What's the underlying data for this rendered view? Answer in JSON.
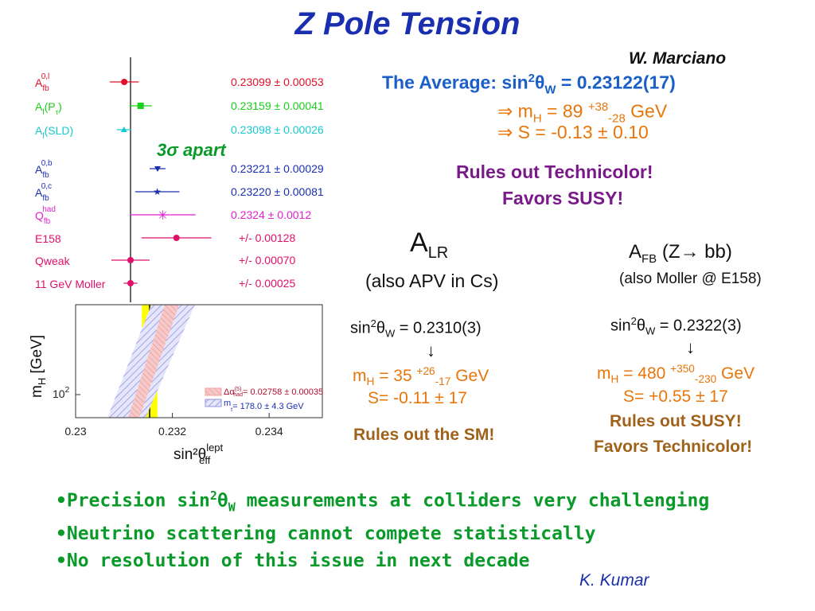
{
  "title": "Z Pole Tension",
  "author_top": "W. Marciano",
  "average": {
    "prefix": "The Average:  sin",
    "sup": "2",
    "theta": "θ",
    "sub": "W",
    "value": " = 0.23122(17)"
  },
  "implications": {
    "mh_arrow": "⇒ m",
    "mh_sub": "H",
    "mh_eq": " = 89 ",
    "mh_sup": "+38",
    "mh_sub2": "-28",
    "mh_unit": " GeV",
    "s_line": "⇒ S = -0.13 ± 0.10"
  },
  "rules_left": [
    "Rules out Technicolor!",
    "Favors SUSY!"
  ],
  "sigma_apart": "3σ apart",
  "alr": {
    "title_A": "A",
    "title_sub": "LR",
    "subtitle": "(also APV in Cs)",
    "sin_pre": "sin",
    "sin_sup": "2",
    "sin_theta": "θ",
    "sin_sub": "W",
    "sin_val": " = 0.2310(3)",
    "arrow": "↓",
    "mh_pre": "m",
    "mh_sub": "H",
    "mh_eq": " = 35 ",
    "mh_sup": "+26",
    "mh_sub2": "-17",
    "mh_unit": " GeV",
    "s_line": "S= -0.11 ± 17",
    "rules": "Rules out the SM!"
  },
  "afb": {
    "title_A": "A",
    "title_sub": "FB",
    "title_rest": " (Z→ bb)",
    "subtitle": "(also Moller @ E158)",
    "sin_pre": "sin",
    "sin_sup": "2",
    "sin_theta": "θ",
    "sin_sub": "W",
    "sin_val": " = 0.2322(3)",
    "arrow": "↓",
    "mh_pre": "m",
    "mh_sub": "H",
    "mh_eq": " = 480 ",
    "mh_sup": "+350",
    "mh_sub2": "-230",
    "mh_unit": " GeV",
    "s_line": "S= +0.55 ± 17",
    "rules": [
      "Rules out SUSY!",
      "Favors Technicolor!"
    ]
  },
  "bullets": [
    {
      "pre": "•Precision sin",
      "sup": "2",
      "theta": "θ",
      "sub": "W",
      "post": " measurements at colliders very challenging"
    },
    {
      "pre": "•Neutrino scattering cannot compete statistically"
    },
    {
      "pre": "•No resolution of this issue in next decade"
    }
  ],
  "author_bottom": "K. Kumar",
  "chart_data": [
    {
      "type": "scatter",
      "rows": [
        {
          "label": "A",
          "label_sup": "0,l",
          "label_sub": "fb",
          "value_text": "0.23099 ± 0.00053",
          "x": 0.23099,
          "err": 0.00053,
          "color": "#e0102a",
          "marker": "circle"
        },
        {
          "label": "A",
          "label_sup": "",
          "label_sub": "l",
          "label_rest": "(P",
          "label_rest_sub": "τ",
          "label_end": ")",
          "value_text": "0.23159 ± 0.00041",
          "x": 0.23159,
          "err": 0.00041,
          "color": "#1ad01a",
          "marker": "square"
        },
        {
          "label": "A",
          "label_sup": "",
          "label_sub": "l",
          "label_rest": "(SLD)",
          "value_text": "0.23098 ± 0.00026",
          "x": 0.23098,
          "err": 0.00026,
          "color": "#18c8d0",
          "marker": "triangle"
        },
        {
          "label": "A",
          "label_sup": "0,b",
          "label_sub": "fb",
          "value_text": "0.23221 ± 0.00029",
          "x": 0.23221,
          "err": 0.00029,
          "color": "#1a2fb0",
          "marker": "triangle-down"
        },
        {
          "label": "A",
          "label_sup": "0,c",
          "label_sub": "fb",
          "value_text": "0.23220 ± 0.00081",
          "x": 0.2322,
          "err": 0.00081,
          "color": "#1a2fb0",
          "marker": "star"
        },
        {
          "label": "Q",
          "label_sup": "had",
          "label_sub": "fb",
          "value_text": "0.2324 ± 0.0012",
          "x": 0.2324,
          "err": 0.0012,
          "color": "#e020d0",
          "marker": "asterisk"
        },
        {
          "label": "E158",
          "value_text": "+/-   0.00128",
          "x": 0.2329,
          "err": 0.00128,
          "color": "#e0106a",
          "marker": "circle"
        },
        {
          "label": "Qweak",
          "value_text": "+/-  0.00070",
          "x": 0.23122,
          "err": 0.0007,
          "color": "#e0106a",
          "marker": "circle"
        },
        {
          "label": "11 GeV Moller",
          "value_text": "+/-  0.00025",
          "x": 0.23122,
          "err": 0.00025,
          "color": "#e0106a",
          "marker": "circle"
        }
      ],
      "average": 0.23122,
      "xlim": [
        0.2295,
        0.2346
      ]
    },
    {
      "type": "area",
      "xlabel": "sin²θ",
      "xlabel_sup": "lept",
      "xlabel_sub": "eff",
      "ylabel": "m",
      "ylabel_sub": "H",
      "ylabel_unit": "  [GeV]",
      "xticks": [
        "0.23",
        "0.232",
        "0.234"
      ],
      "xtick_values": [
        0.23,
        0.232,
        0.234
      ],
      "ytick": "10",
      "ytick_sup": "2",
      "xlim": [
        0.23,
        0.2351
      ],
      "band_center": 0.23153,
      "band_halfwidth": 0.00016,
      "legend": [
        {
          "text_pre": "Δα",
          "text_sup": "(5)",
          "text_sub": "had",
          "text_post": "= 0.02758 ± 0.00035",
          "color": "#f0a0a0"
        },
        {
          "text_pre": "m",
          "text_sub": "t",
          "text_post": "= 178.0 ± 4.3 GeV",
          "color": "#9090e0"
        }
      ]
    }
  ]
}
